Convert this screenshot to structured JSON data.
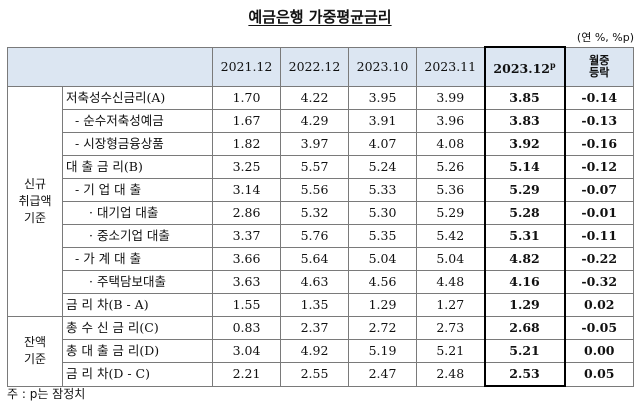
{
  "title": "예금은행 가중평균금리",
  "unit": "(연 %, %p)",
  "headers": {
    "c1": "2021.12",
    "c2": "2022.12",
    "c3": "2023.10",
    "c4": "2023.11",
    "c5": "2023.12",
    "c5_sup": "p",
    "c6_line1": "월중",
    "c6_line2": "등락"
  },
  "groups": {
    "new_line1": "신규",
    "new_line2": "취급액",
    "new_line3": "기준",
    "bal_line1": "잔액",
    "bal_line2": "기준"
  },
  "rows": [
    {
      "label": "저축성수신금리(A)",
      "v": [
        "1.70",
        "4.22",
        "3.95",
        "3.99",
        "3.85",
        "-0.14"
      ]
    },
    {
      "label": "- 순수저축성예금",
      "v": [
        "1.67",
        "4.29",
        "3.91",
        "3.96",
        "3.83",
        "-0.13"
      ]
    },
    {
      "label": "- 시장형금융상품",
      "v": [
        "1.82",
        "3.97",
        "4.07",
        "4.08",
        "3.92",
        "-0.16"
      ]
    },
    {
      "label": "대 출 금 리(B)",
      "v": [
        "3.25",
        "5.57",
        "5.24",
        "5.26",
        "5.14",
        "-0.12"
      ]
    },
    {
      "label": "- 기 업 대 출",
      "v": [
        "3.14",
        "5.56",
        "5.33",
        "5.36",
        "5.29",
        "-0.07"
      ]
    },
    {
      "label": "· 대기업 대출",
      "v": [
        "2.86",
        "5.32",
        "5.30",
        "5.29",
        "5.28",
        "-0.01"
      ]
    },
    {
      "label": "· 중소기업 대출",
      "v": [
        "3.37",
        "5.76",
        "5.35",
        "5.42",
        "5.31",
        "-0.11"
      ]
    },
    {
      "label": "- 가 계 대 출",
      "v": [
        "3.66",
        "5.64",
        "5.04",
        "5.04",
        "4.82",
        "-0.22"
      ]
    },
    {
      "label": "· 주택담보대출",
      "v": [
        "3.63",
        "4.63",
        "4.56",
        "4.48",
        "4.16",
        "-0.32"
      ]
    },
    {
      "label": "금 리 차(B - A)",
      "v": [
        "1.55",
        "1.35",
        "1.29",
        "1.27",
        "1.29",
        "0.02"
      ]
    },
    {
      "label": "총 수 신 금 리(C)",
      "v": [
        "0.83",
        "2.37",
        "2.72",
        "2.73",
        "2.68",
        "-0.05"
      ]
    },
    {
      "label": "총 대 출 금 리(D)",
      "v": [
        "3.04",
        "4.92",
        "5.19",
        "5.21",
        "5.21",
        "0.00"
      ]
    },
    {
      "label": "금 리 차(D - C)",
      "v": [
        "2.21",
        "2.55",
        "2.47",
        "2.48",
        "2.53",
        "0.05"
      ]
    }
  ],
  "note": "주 : p는 잠정치"
}
